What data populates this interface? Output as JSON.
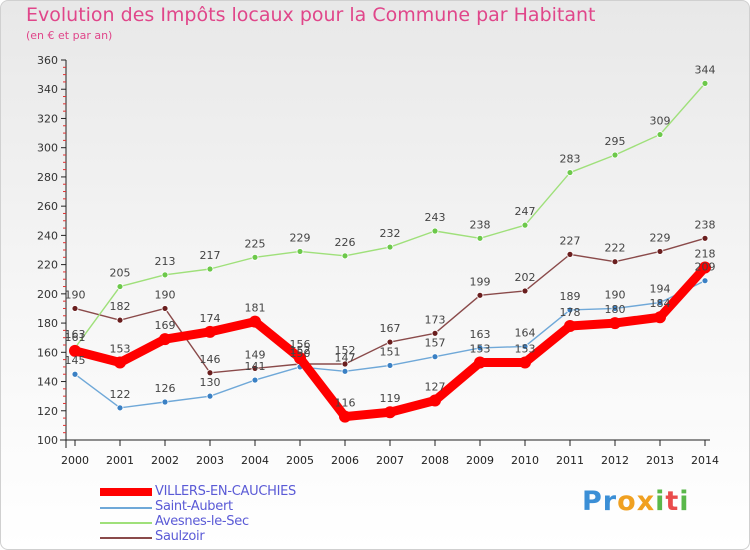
{
  "title": "Evolution des Impôts locaux pour la Commune par Habitant",
  "subtitle": "(en € et par an)",
  "logo": {
    "letters": [
      "P",
      "r",
      "o",
      "x",
      "i",
      "t",
      "i"
    ],
    "colors": [
      "#3b8fd6",
      "#3b8fd6",
      "#f0a020",
      "#f0a020",
      "#5ab84a",
      "#e94b4b",
      "#5ab84a"
    ]
  },
  "chart_data": {
    "type": "line",
    "title": "Evolution des Impôts locaux pour la Commune par Habitant",
    "subtitle": "(en € et par an)",
    "categories": [
      "2000",
      "2001",
      "2002",
      "2003",
      "2004",
      "2005",
      "2006",
      "2007",
      "2008",
      "2009",
      "2010",
      "2011",
      "2012",
      "2013",
      "2014"
    ],
    "ylim": [
      100,
      360
    ],
    "yticks": [
      100,
      120,
      140,
      160,
      180,
      200,
      220,
      240,
      260,
      280,
      300,
      320,
      340,
      360
    ],
    "grid": false,
    "legend_position": "bottom-left",
    "series": [
      {
        "name": "VILLERS-EN-CAUCHIES",
        "color": "#ff0000",
        "marker": "#ff0000",
        "values": [
          161,
          153,
          169,
          174,
          181,
          156,
          116,
          119,
          127,
          153,
          153,
          178,
          180,
          184,
          218
        ]
      },
      {
        "name": "Saint-Aubert",
        "color": "#6fa8d8",
        "marker": "#3a80c4",
        "values": [
          145,
          122,
          126,
          130,
          141,
          150,
          147,
          151,
          157,
          163,
          164,
          189,
          190,
          194,
          209
        ]
      },
      {
        "name": "Avesnes-le-Sec",
        "color": "#9fe07a",
        "marker": "#6cc84a",
        "values": [
          163,
          205,
          213,
          217,
          225,
          229,
          226,
          232,
          243,
          238,
          247,
          283,
          295,
          309,
          344
        ]
      },
      {
        "name": "Saulzoir",
        "color": "#8a4a4a",
        "marker": "#6a1e1e",
        "values": [
          190,
          182,
          190,
          146,
          149,
          152,
          152,
          167,
          173,
          199,
          202,
          227,
          222,
          229,
          238
        ]
      }
    ]
  }
}
